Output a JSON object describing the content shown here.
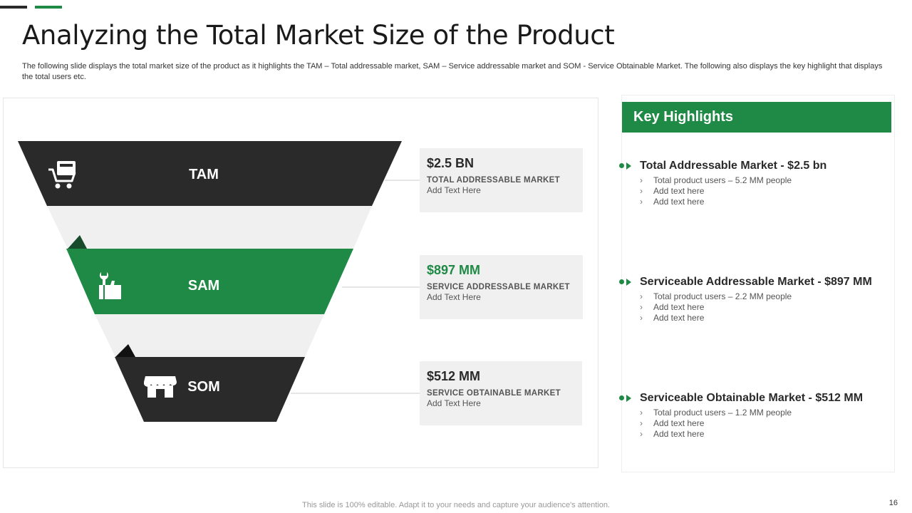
{
  "slide": {
    "title": "Analyzing the Total Market Size of the Product",
    "description": "The following slide displays the total market size of the product as it highlights the TAM – Total addressable market, SAM – Service addressable market and SOM -  Service Obtainable Market. The following also displays the key highlight that displays the total users etc.",
    "footer": "This slide is 100% editable. Adapt it to your needs and capture your audience's attention.",
    "page_number": "16"
  },
  "colors": {
    "dark": "#2b2a2a",
    "green": "#1f8a45",
    "light_gray": "#f0f0f0"
  },
  "funnel": {
    "levels": [
      {
        "label": "TAM",
        "icon": "shopping-cart-icon",
        "color": "#2b2a2a"
      },
      {
        "label": "SAM",
        "icon": "thumbs-up-wrench-icon",
        "color": "#1f8a45"
      },
      {
        "label": "SOM",
        "icon": "storefront-icon",
        "color": "#2b2a2a"
      }
    ]
  },
  "values": [
    {
      "amount": "$2.5 BN",
      "caption": "TOTAL ADDRESSABLE  MARKET",
      "sub": "Add Text Here"
    },
    {
      "amount": "$897 MM",
      "caption": "SERVICE  ADDRESSABLE  MARKET",
      "sub": "Add Text Here"
    },
    {
      "amount": "$512 MM",
      "caption": "SERVICE  OBTAINABLE  MARKET",
      "sub": "Add Text Here"
    }
  ],
  "highlights": {
    "header": "Key Highlights",
    "items": [
      {
        "title": "Total Addressable Market - $2.5 bn",
        "points": [
          "Total product users – 5.2 MM people",
          "Add text here",
          "Add text here"
        ]
      },
      {
        "title": "Serviceable Addressable Market - $897 MM",
        "points": [
          "Total product users – 2.2 MM people",
          "Add text here",
          "Add text here"
        ]
      },
      {
        "title": "Serviceable Obtainable Market - $512 MM",
        "points": [
          "Total product users – 1.2 MM people",
          "Add text here",
          "Add text here"
        ]
      }
    ]
  }
}
